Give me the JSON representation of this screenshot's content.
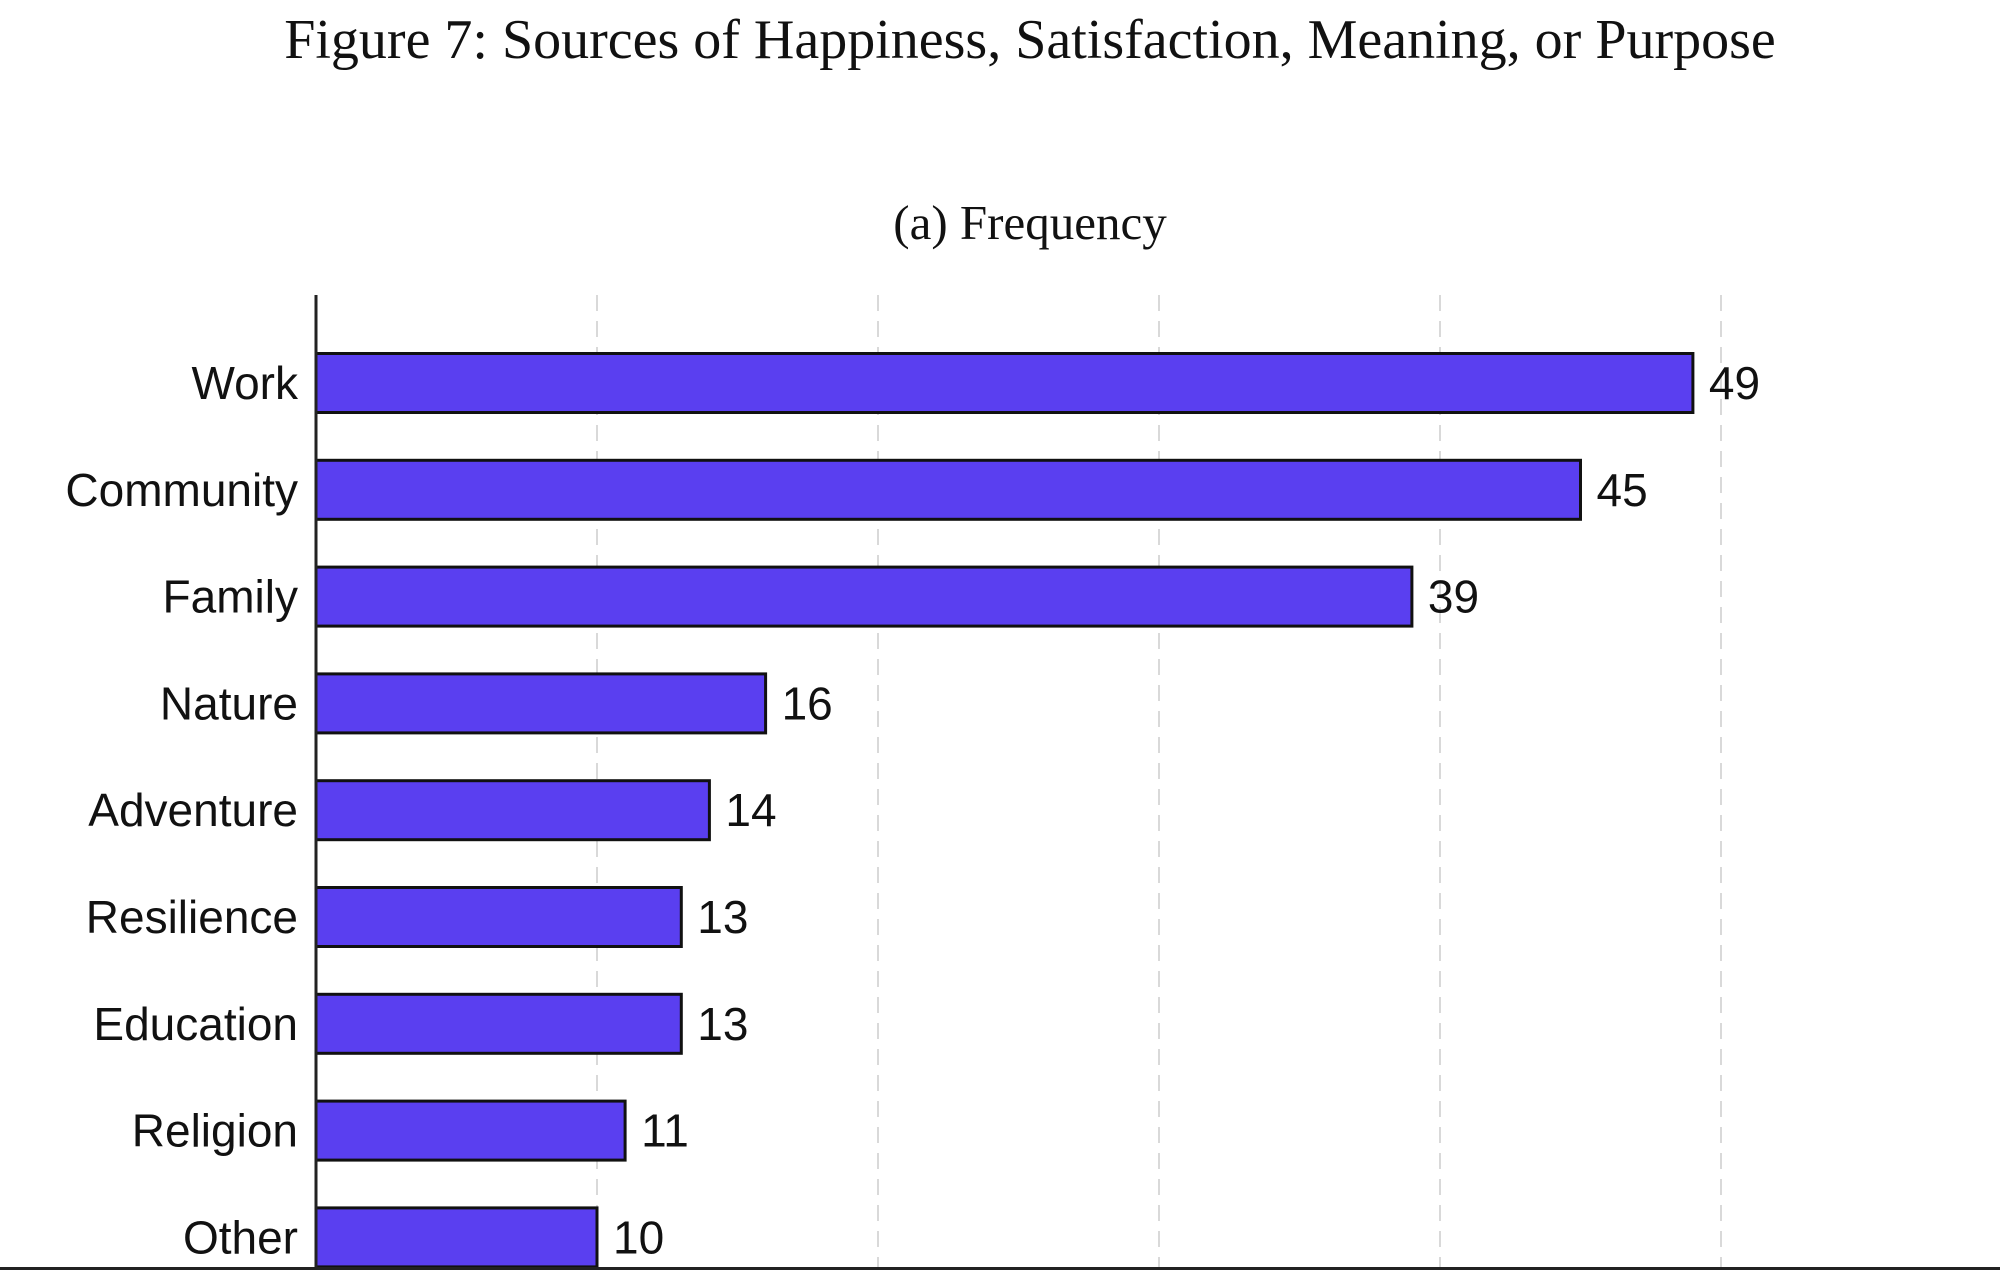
{
  "figure_title": "Figure 7: Sources of Happiness, Satisfaction, Meaning, or Purpose",
  "chart_data": {
    "type": "bar",
    "orientation": "horizontal",
    "title": "(a) Frequency",
    "categories": [
      "Work",
      "Community",
      "Family",
      "Nature",
      "Adventure",
      "Resilience",
      "Education",
      "Religion",
      "Other"
    ],
    "values": [
      49,
      45,
      39,
      16,
      14,
      13,
      13,
      11,
      10
    ],
    "xlim": [
      0,
      60
    ],
    "x_gridlines": [
      10,
      20,
      30,
      40,
      50,
      60
    ],
    "grid": true,
    "xlabel": "",
    "ylabel": "",
    "bar_color": "#5a3ff0",
    "bar_edge_color": "#111111"
  }
}
